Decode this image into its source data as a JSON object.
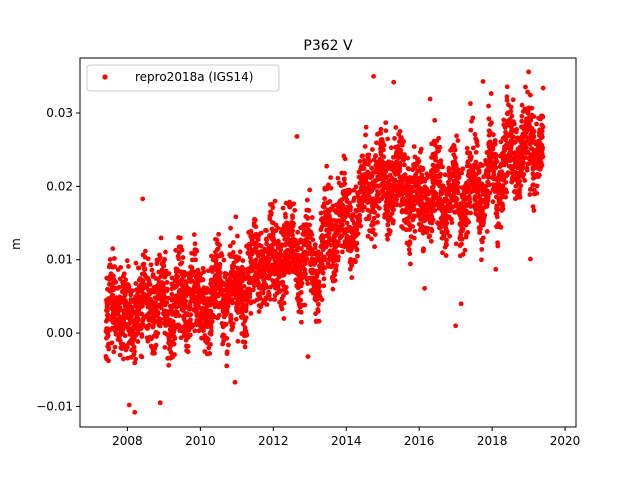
{
  "chart_data": {
    "type": "scatter",
    "title": "P362 V",
    "xlabel": "",
    "ylabel": "m",
    "xlim": [
      2006.7,
      2020.3
    ],
    "ylim": [
      -0.0128,
      0.0375
    ],
    "xticks": [
      2008,
      2010,
      2012,
      2014,
      2016,
      2018,
      2020
    ],
    "xtick_labels": [
      "2008",
      "2010",
      "2012",
      "2014",
      "2016",
      "2018",
      "2020"
    ],
    "yticks": [
      -0.01,
      0.0,
      0.01,
      0.02,
      0.03
    ],
    "ytick_labels": [
      "−0.01",
      "0.00",
      "0.01",
      "0.02",
      "0.03"
    ],
    "grid": false,
    "legend_position": "top-left",
    "series": [
      {
        "name": "repro2018a (IGS14)",
        "color": "#ff0000",
        "marker": "circle",
        "x": [
          2007.45,
          2007.55,
          2007.65,
          2007.75,
          2007.85,
          2007.95,
          2008.05,
          2008.15,
          2008.25,
          2008.35,
          2008.45,
          2008.55,
          2008.65,
          2008.75,
          2008.85,
          2008.95,
          2009.05,
          2009.15,
          2009.25,
          2009.35,
          2009.45,
          2009.55,
          2009.65,
          2009.75,
          2009.85,
          2009.95,
          2010.05,
          2010.15,
          2010.25,
          2010.35,
          2010.45,
          2010.55,
          2010.65,
          2010.75,
          2010.85,
          2010.95,
          2011.05,
          2011.15,
          2011.25,
          2011.35,
          2011.45,
          2011.55,
          2011.65,
          2011.75,
          2011.85,
          2011.95,
          2012.05,
          2012.15,
          2012.25,
          2012.35,
          2012.45,
          2012.55,
          2012.65,
          2012.75,
          2012.85,
          2012.95,
          2013.05,
          2013.15,
          2013.25,
          2013.35,
          2013.45,
          2013.55,
          2013.65,
          2013.75,
          2013.85,
          2013.95,
          2014.05,
          2014.15,
          2014.25,
          2014.35,
          2014.45,
          2014.55,
          2014.65,
          2014.75,
          2014.85,
          2014.95,
          2015.05,
          2015.15,
          2015.25,
          2015.35,
          2015.45,
          2015.55,
          2015.65,
          2015.75,
          2015.85,
          2015.95,
          2016.05,
          2016.15,
          2016.25,
          2016.35,
          2016.45,
          2016.55,
          2016.65,
          2016.75,
          2016.85,
          2016.95,
          2017.05,
          2017.15,
          2017.25,
          2017.35,
          2017.45,
          2017.55,
          2017.65,
          2017.75,
          2017.85,
          2017.95,
          2018.05,
          2018.15,
          2018.25,
          2018.35,
          2018.45,
          2018.55,
          2018.65,
          2018.75,
          2018.85,
          2018.95,
          2019.05,
          2019.15,
          2019.25,
          2019.35
        ],
        "y_mean": [
          0.001,
          0.005,
          0.004,
          0.002,
          0.003,
          0.004,
          0.003,
          0.001,
          0.002,
          0.004,
          0.006,
          0.005,
          0.003,
          0.002,
          0.004,
          0.006,
          0.004,
          0.001,
          0.002,
          0.005,
          0.006,
          0.004,
          0.003,
          0.005,
          0.007,
          0.006,
          0.004,
          0.002,
          0.003,
          0.006,
          0.008,
          0.007,
          0.004,
          0.003,
          0.006,
          0.008,
          0.006,
          0.004,
          0.005,
          0.009,
          0.011,
          0.01,
          0.008,
          0.007,
          0.009,
          0.012,
          0.01,
          0.008,
          0.009,
          0.012,
          0.013,
          0.012,
          0.009,
          0.008,
          0.011,
          0.013,
          0.01,
          0.007,
          0.008,
          0.012,
          0.015,
          0.014,
          0.012,
          0.013,
          0.016,
          0.018,
          0.016,
          0.013,
          0.014,
          0.017,
          0.02,
          0.021,
          0.019,
          0.018,
          0.021,
          0.023,
          0.021,
          0.018,
          0.019,
          0.022,
          0.024,
          0.021,
          0.018,
          0.017,
          0.019,
          0.021,
          0.019,
          0.016,
          0.017,
          0.019,
          0.022,
          0.02,
          0.017,
          0.016,
          0.019,
          0.022,
          0.02,
          0.016,
          0.017,
          0.02,
          0.023,
          0.022,
          0.018,
          0.017,
          0.02,
          0.024,
          0.022,
          0.019,
          0.02,
          0.024,
          0.027,
          0.026,
          0.023,
          0.022,
          0.025,
          0.028,
          0.026,
          0.023,
          0.024,
          0.026
        ],
        "y_spread": 0.0048,
        "points_per_bin": 34,
        "outliers": [
          [
            2008.42,
            0.0183
          ],
          [
            2008.2,
            -0.0108
          ],
          [
            2008.05,
            -0.0098
          ],
          [
            2008.9,
            -0.0095
          ],
          [
            2010.95,
            -0.0067
          ],
          [
            2012.65,
            0.0268
          ],
          [
            2012.95,
            -0.0032
          ],
          [
            2014.75,
            0.035
          ],
          [
            2015.3,
            0.0342
          ],
          [
            2016.15,
            0.0061
          ],
          [
            2017.0,
            0.001
          ],
          [
            2017.15,
            0.004
          ],
          [
            2017.75,
            0.0343
          ],
          [
            2019.0,
            0.0356
          ],
          [
            2019.05,
            0.0101
          ],
          [
            2019.4,
            0.0334
          ],
          [
            2018.1,
            0.0087
          ],
          [
            2016.3,
            0.0319
          ]
        ]
      }
    ]
  }
}
